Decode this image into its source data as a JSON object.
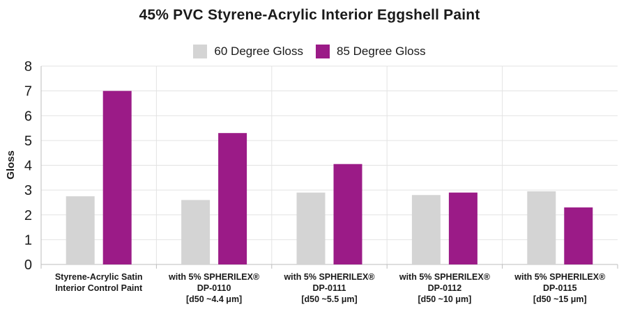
{
  "chart_data": {
    "type": "bar",
    "title": "45% PVC Styrene-Acrylic Interior Eggshell Paint",
    "ylabel": "Gloss",
    "xlabel": "",
    "ylim": [
      0,
      8
    ],
    "yticks": [
      "0",
      "1",
      "2",
      "3",
      "4",
      "5",
      "6",
      "7",
      "8"
    ],
    "grid": true,
    "legend_position": "top-center",
    "categories": [
      [
        "Styrene-Acrylic Satin",
        "Interior Control Paint"
      ],
      [
        "with 5% SPHERILEX®",
        "DP-0110",
        "[d50 ~4.4 μm]"
      ],
      [
        "with 5% SPHERILEX®",
        "DP-0111",
        "[d50 ~5.5 μm]"
      ],
      [
        "with 5% SPHERILEX®",
        "DP-0112",
        "[d50 ~10 μm]"
      ],
      [
        "with 5% SPHERILEX®",
        "DP-0115",
        "[d50 ~15 μm]"
      ]
    ],
    "series": [
      {
        "name": "60 Degree Gloss",
        "color": "#d4d4d4",
        "values": [
          2.75,
          2.6,
          2.9,
          2.8,
          2.95
        ]
      },
      {
        "name": "85 Degree Gloss",
        "color": "#9b1b87",
        "values": [
          7.0,
          5.3,
          4.05,
          2.9,
          2.3
        ]
      }
    ]
  }
}
